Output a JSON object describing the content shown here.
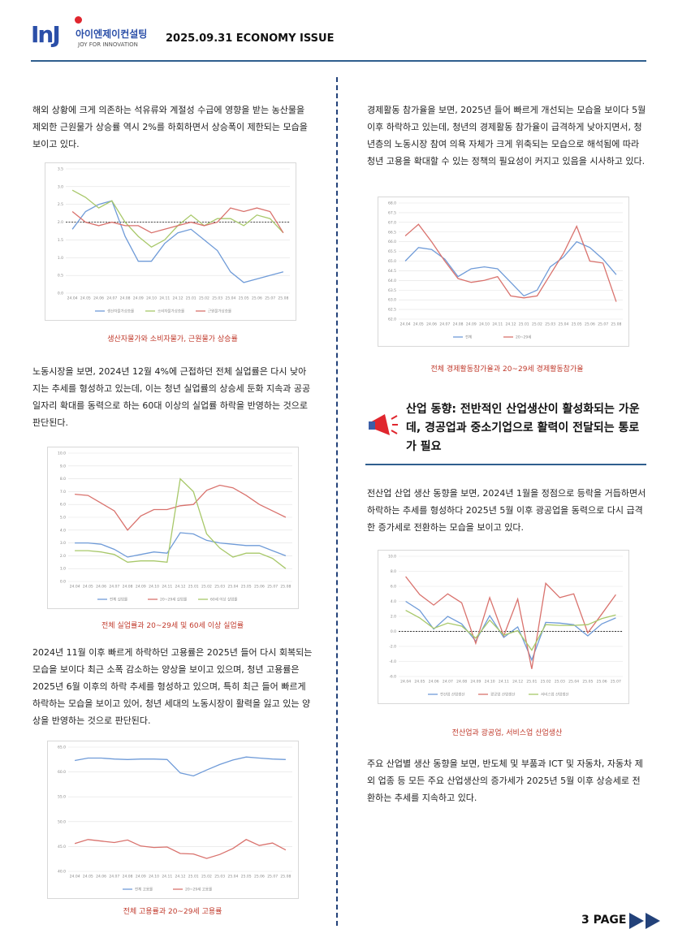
{
  "header": {
    "logo": "InJ",
    "brand": "아이엔제이컨설팅",
    "tagline": "JOY FOR INNOVATION",
    "issue": "2025.09.31 ECONOMY ISSUE"
  },
  "left": {
    "paragraphs": [
      "해외 상황에 크게 의존하는 석유류와 계절성 수급에 영향을 받는 농산물을 제외한 근원물가 상승률 역시 2%를 하회하면서 상승폭이 제한되는 모습을 보이고 있다.",
      "노동시장을 보면, 2024년 12월 4%에 근접하던 전체 실업률은 다시 낮아지는 추세를 형성하고 있는데, 이는 청년 실업률의 상승세 둔화 지속과 공공 일자리 확대를 동력으로 하는 60대 이상의 실업률 하락을 반영하는 것으로 판단된다.",
      "2024년 11월 이후 빠르게 하락하던 고용률은 2025년 들어 다시 회복되는 모습을 보이다 최근 소폭 감소하는 양상을 보이고 있으며, 청년 고용률은 2025년 6월 이후의 하락 추세를 형성하고 있으며, 특히 최근 들어 빠르게 하락하는 모습을 보이고 있어, 청년 세대의 노동시장이 활력을 잃고 있는 양상을 반영하는 것으로 판단된다."
    ]
  },
  "right": {
    "paragraphs": [
      "경제활동 참가율을 보면, 2025년 들어 빠르게 개선되는 모습을 보이다 5월 이후 하락하고 있는데, 청년의 경제활동 참가율이 급격하게 낮아지면서, 청년층의 노동시장 참여 의욕 자체가 크게 위축되는 모습으로 해석됨에 따라 청년 고용을 확대할 수 있는 정책의 필요성이 커지고 있음을 시사하고 있다.",
      "전산업 산업 생산 동향을 보면, 2024년 1월을 정점으로 등락을 거듭하면서 하락하는 추세를 형성하다 2025년 5월 이후 광공업을 동력으로 다시 급격한 증가세로 전환하는 모습을 보이고 있다.",
      "주요 산업별 생산 동향을 보면, 반도체 및 부품과 ICT 및 자동차, 자동차 제외 업종 등 모든 주요 산업생산의 증가세가 2025년 5월 이후 상승세로 전환하는 추세를 지속하고 있다."
    ],
    "section_heading": "산업 동향: 전반적인 산업생산이 활성화되는 가운데, 경공업과 중소기업으로 활력이 전달되는 통로가 필요"
  },
  "charts": [
    {
      "type": "line",
      "caption": "생산자물가와 소비자물가, 근원물가 상승률",
      "categories": [
        "24.04",
        "24.05",
        "24.06",
        "24.07",
        "24.08",
        "24.09",
        "24.10",
        "24.11",
        "24.12",
        "25.01",
        "25.02",
        "25.03",
        "25.04",
        "25.05",
        "25.06",
        "25.07",
        "25.08"
      ],
      "ylim": [
        0,
        3.5
      ],
      "yticks": [
        {
          "value": 0,
          "label": "0.0"
        },
        {
          "value": 0.5,
          "label": "0.5"
        },
        {
          "value": 1,
          "label": "1.0"
        },
        {
          "value": 1.5,
          "label": "1.5"
        },
        {
          "value": 2,
          "label": "2.0"
        },
        {
          "value": 2.5,
          "label": "2.5"
        },
        {
          "value": 3,
          "label": "3.0"
        },
        {
          "value": 3.5,
          "label": "3.5"
        }
      ],
      "ref_line": 2,
      "series": [
        {
          "name": "생산자물가상승률",
          "color": "#6f9bd8",
          "values": [
            1.8,
            2.3,
            2.5,
            2.6,
            1.6,
            0.9,
            0.9,
            1.4,
            1.7,
            1.8,
            1.5,
            1.2,
            0.6,
            0.3,
            0.4,
            0.5,
            0.6
          ]
        },
        {
          "name": "소비자물가상승률",
          "color": "#a8c86a",
          "values": [
            2.9,
            2.7,
            2.4,
            2.6,
            2.0,
            1.6,
            1.3,
            1.5,
            1.9,
            2.2,
            1.9,
            2.1,
            2.1,
            1.9,
            2.2,
            2.1,
            1.7
          ]
        },
        {
          "name": "근원물가상승률",
          "color": "#d9726d",
          "values": [
            2.3,
            2.0,
            1.9,
            2.0,
            1.9,
            1.9,
            1.7,
            1.8,
            1.9,
            2.0,
            1.9,
            2.0,
            2.4,
            2.3,
            2.4,
            2.3,
            1.7
          ]
        }
      ]
    },
    {
      "type": "line",
      "caption": "전체 실업률과 20~29세 및 60세 이상 실업률",
      "categories": [
        "24.04",
        "24.05",
        "24.06",
        "24.07",
        "24.08",
        "24.09",
        "24.10",
        "24.11",
        "24.12",
        "25.01",
        "25.02",
        "25.03",
        "25.04",
        "25.05",
        "25.06",
        "25.07",
        "25.08"
      ],
      "ylim": [
        0,
        10
      ],
      "yticks": [
        {
          "value": 0,
          "label": "0.0"
        },
        {
          "value": 1,
          "label": "1.0"
        },
        {
          "value": 2,
          "label": "2.0"
        },
        {
          "value": 3,
          "label": "3.0"
        },
        {
          "value": 4,
          "label": "4.0"
        },
        {
          "value": 5,
          "label": "5.0"
        },
        {
          "value": 6,
          "label": "6.0"
        },
        {
          "value": 7,
          "label": "7.0"
        },
        {
          "value": 8,
          "label": "8.0"
        },
        {
          "value": 9,
          "label": "9.0"
        },
        {
          "value": 10,
          "label": "10.0"
        }
      ],
      "series": [
        {
          "name": "전체 실업률",
          "color": "#6f9bd8",
          "values": [
            3.0,
            3.0,
            2.9,
            2.5,
            1.9,
            2.1,
            2.3,
            2.2,
            3.8,
            3.7,
            3.2,
            3.0,
            2.9,
            2.8,
            2.8,
            2.4,
            2.0
          ]
        },
        {
          "name": "20~29세 실업률",
          "color": "#d9726d",
          "values": [
            6.8,
            6.7,
            6.1,
            5.5,
            4.0,
            5.1,
            5.6,
            5.6,
            5.9,
            6.0,
            7.1,
            7.5,
            7.3,
            6.7,
            6.0,
            5.5,
            5.0
          ]
        },
        {
          "name": "60세 이상 실업률",
          "color": "#a8c86a",
          "values": [
            2.4,
            2.4,
            2.3,
            2.1,
            1.5,
            1.6,
            1.6,
            1.5,
            8.0,
            7.0,
            3.7,
            2.6,
            1.9,
            2.2,
            2.2,
            1.8,
            1.0
          ]
        }
      ]
    },
    {
      "type": "line",
      "caption": "전체 고용률과 20~29세 고용률",
      "categories": [
        "24.04",
        "24.05",
        "24.06",
        "24.07",
        "24.08",
        "24.09",
        "24.10",
        "24.11",
        "24.12",
        "25.01",
        "25.02",
        "25.03",
        "25.04",
        "25.05",
        "25.06",
        "25.07",
        "25.08"
      ],
      "ylim": [
        40,
        65
      ],
      "yticks": [
        {
          "value": 40,
          "label": "40.0"
        },
        {
          "value": 45,
          "label": "45.0"
        },
        {
          "value": 50,
          "label": "50.0"
        },
        {
          "value": 55,
          "label": "55.0"
        },
        {
          "value": 60,
          "label": "60.0"
        },
        {
          "value": 65,
          "label": "65.0"
        }
      ],
      "series": [
        {
          "name": "전체 고용률",
          "color": "#6f9bd8",
          "values": [
            62.3,
            62.8,
            62.8,
            62.6,
            62.5,
            62.6,
            62.6,
            62.5,
            59.8,
            59.2,
            60.4,
            61.5,
            62.4,
            63.0,
            62.8,
            62.6,
            62.5
          ]
        },
        {
          "name": "20~29세 고용률",
          "color": "#d9726d",
          "values": [
            45.6,
            46.4,
            46.1,
            45.8,
            46.3,
            45.1,
            44.8,
            44.9,
            43.6,
            43.5,
            42.6,
            43.4,
            44.6,
            46.4,
            45.2,
            45.7,
            44.3
          ]
        }
      ]
    },
    {
      "type": "line",
      "caption": "전체 경제활동참가율과 20~29세 경제활동참가율",
      "categories": [
        "24.04",
        "24.05",
        "24.06",
        "24.07",
        "24.08",
        "24.09",
        "24.10",
        "24.11",
        "24.12",
        "25.01",
        "25.02",
        "25.03",
        "25.04",
        "25.05",
        "25.06",
        "25.07",
        "25.08"
      ],
      "ylim": [
        62,
        68
      ],
      "yticks": [
        {
          "value": 62,
          "label": "62.0"
        },
        {
          "value": 62.5,
          "label": "62.5"
        },
        {
          "value": 63,
          "label": "63.0"
        },
        {
          "value": 63.5,
          "label": "63.5"
        },
        {
          "value": 64,
          "label": "64.0"
        },
        {
          "value": 64.5,
          "label": "64.5"
        },
        {
          "value": 65,
          "label": "65.0"
        },
        {
          "value": 65.5,
          "label": "65.5"
        },
        {
          "value": 66,
          "label": "66.0"
        },
        {
          "value": 66.5,
          "label": "66.5"
        },
        {
          "value": 67,
          "label": "67.0"
        },
        {
          "value": 67.5,
          "label": "67.5"
        },
        {
          "value": 68,
          "label": "68.0"
        }
      ],
      "series": [
        {
          "name": "전체",
          "color": "#6f9bd8",
          "values": [
            65.0,
            65.7,
            65.6,
            65.1,
            64.2,
            64.6,
            64.7,
            64.6,
            63.9,
            63.2,
            63.5,
            64.7,
            65.2,
            66.0,
            65.7,
            65.1,
            64.3
          ]
        },
        {
          "name": "20~29세",
          "color": "#d9726d",
          "values": [
            66.3,
            66.9,
            66.0,
            65.0,
            64.1,
            63.9,
            64.0,
            64.2,
            63.2,
            63.1,
            63.2,
            64.3,
            65.4,
            66.8,
            65.0,
            64.9,
            62.9
          ]
        }
      ]
    },
    {
      "type": "line",
      "caption": "전산업과 광공업, 서비스업 산업생산",
      "categories": [
        "24.04",
        "24.05",
        "24.06",
        "24.07",
        "24.08",
        "24.09",
        "24.10",
        "24.11",
        "24.12",
        "25.01",
        "25.02",
        "25.03",
        "25.04",
        "25.05",
        "25.06",
        "25.07"
      ],
      "ylim": [
        -6,
        10
      ],
      "yticks": [
        {
          "value": -6,
          "label": "-6.0"
        },
        {
          "value": -4,
          "label": "-4.0"
        },
        {
          "value": -2,
          "label": "-2.0"
        },
        {
          "value": 0,
          "label": "0.0"
        },
        {
          "value": 2,
          "label": "2.0"
        },
        {
          "value": 4,
          "label": "4.0"
        },
        {
          "value": 6,
          "label": "6.0"
        },
        {
          "value": 8,
          "label": "8.0"
        },
        {
          "value": 10,
          "label": "10.0"
        }
      ],
      "ref_line": 0,
      "series": [
        {
          "name": "전산업 산업생산",
          "color": "#6f9bd8",
          "values": [
            4.0,
            2.8,
            0.3,
            2.0,
            1.0,
            -1.3,
            2.1,
            -0.8,
            0.6,
            -3.8,
            1.2,
            1.1,
            0.9,
            -0.6,
            1.0,
            1.8
          ]
        },
        {
          "name": "광공업 산업생산",
          "color": "#d9726d",
          "values": [
            7.3,
            4.9,
            3.5,
            5.0,
            3.8,
            -1.6,
            4.5,
            -0.6,
            4.3,
            -5.0,
            6.4,
            4.5,
            5.0,
            -0.2,
            2.3,
            4.9
          ]
        },
        {
          "name": "서비스업 산업생산",
          "color": "#a8c86a",
          "values": [
            2.8,
            1.8,
            0.4,
            1.1,
            0.7,
            -0.9,
            1.5,
            -0.5,
            0.1,
            -2.5,
            0.9,
            0.8,
            0.8,
            0.9,
            1.7,
            2.2
          ]
        }
      ]
    }
  ],
  "footer": {
    "page": "3 PAGE"
  }
}
